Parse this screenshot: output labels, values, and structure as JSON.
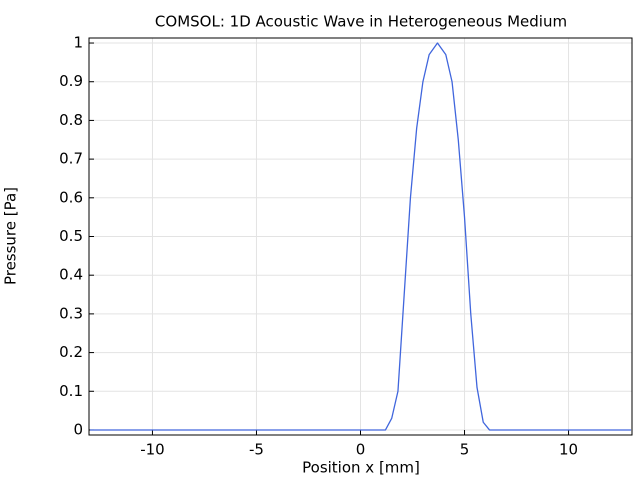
{
  "chart_data": {
    "type": "line",
    "title": "COMSOL: 1D Acoustic Wave in Heterogeneous Medium",
    "x_label": "Position x [mm]",
    "y_label": "Pressure [Pa]",
    "x": [
      -13,
      1.2,
      1.5,
      1.8,
      2.1,
      2.4,
      2.7,
      3.0,
      3.3,
      3.7,
      4.1,
      4.4,
      4.7,
      5.0,
      5.3,
      5.6,
      5.9,
      6.2,
      13
    ],
    "series": [
      {
        "name": "Pressure",
        "color": "#4066dd",
        "values": [
          0,
          0,
          0.03,
          0.1,
          0.35,
          0.6,
          0.78,
          0.9,
          0.97,
          1.0,
          0.97,
          0.9,
          0.75,
          0.55,
          0.3,
          0.11,
          0.02,
          0,
          0
        ]
      }
    ],
    "xlim": [
      -13.05,
      13.05
    ],
    "ylim": [
      -0.013,
      1.013
    ],
    "xticks": [
      -10,
      -5,
      0,
      5,
      10
    ],
    "yticks": [
      0,
      0.1,
      0.2,
      0.3,
      0.4,
      0.5,
      0.6,
      0.7,
      0.8,
      0.9,
      1
    ],
    "grid": true
  }
}
